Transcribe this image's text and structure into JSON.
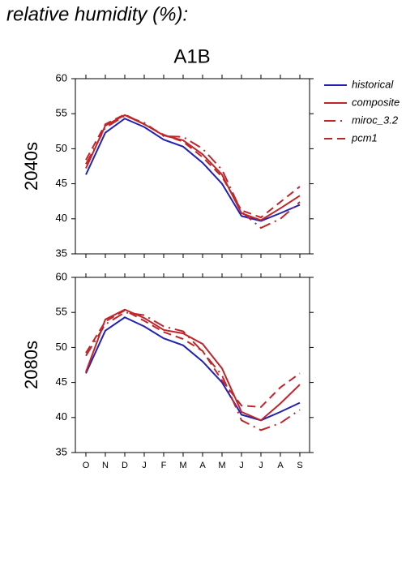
{
  "page_title": "relative humidity (%):",
  "chart_data": [
    {
      "type": "line",
      "title": "A1B",
      "ylabel": "2040s",
      "ylim": [
        35,
        60
      ],
      "yticks": [
        35,
        40,
        45,
        50,
        55,
        60
      ],
      "legend": "right",
      "series": [
        {
          "name": "historical",
          "color": "#2121b4",
          "linestyle": "solid",
          "values": [
            46.3,
            52.3,
            54.3,
            53.1,
            51.3,
            50.3,
            48.0,
            45.0,
            40.4,
            39.7,
            40.8,
            42.0
          ]
        },
        {
          "name": "composite",
          "color": "#c0252a",
          "linestyle": "solid",
          "values": [
            47.2,
            53.3,
            54.8,
            53.5,
            51.9,
            51.2,
            49.2,
            46.3,
            40.8,
            39.8,
            41.5,
            43.3
          ]
        },
        {
          "name": "miroc_3.2",
          "color": "#c0252a",
          "linestyle": "dashdot",
          "values": [
            47.8,
            53.0,
            54.7,
            53.7,
            51.8,
            51.7,
            50.0,
            47.0,
            41.0,
            38.7,
            40.0,
            42.4
          ]
        },
        {
          "name": "pcm1",
          "color": "#c0252a",
          "linestyle": "dash",
          "values": [
            48.4,
            53.5,
            54.9,
            53.5,
            52.0,
            51.0,
            48.8,
            46.0,
            41.2,
            40.2,
            42.4,
            44.6
          ]
        }
      ]
    },
    {
      "type": "line",
      "ylabel": "2080s",
      "categories": [
        "O",
        "N",
        "D",
        "J",
        "F",
        "M",
        "A",
        "M",
        "J",
        "J",
        "A",
        "S"
      ],
      "ylim": [
        35,
        60
      ],
      "yticks": [
        35,
        40,
        45,
        50,
        55,
        60
      ],
      "series": [
        {
          "color": "#2121b4",
          "linestyle": "solid",
          "values": [
            46.3,
            52.4,
            54.3,
            53.0,
            51.3,
            50.3,
            48.0,
            45.0,
            40.4,
            39.6,
            40.8,
            42.1
          ]
        },
        {
          "color": "#c0252a",
          "linestyle": "solid",
          "values": [
            46.5,
            54.0,
            55.4,
            54.2,
            52.5,
            52.0,
            50.5,
            47.0,
            40.8,
            39.6,
            42.0,
            44.7
          ]
        },
        {
          "color": "#c0252a",
          "linestyle": "dashdot",
          "values": [
            48.8,
            53.3,
            55.0,
            54.6,
            53.0,
            52.3,
            49.4,
            46.0,
            39.6,
            38.2,
            39.2,
            41.1
          ]
        },
        {
          "color": "#c0252a",
          "linestyle": "dash",
          "values": [
            49.2,
            53.7,
            55.3,
            53.8,
            52.2,
            51.2,
            49.5,
            45.3,
            41.7,
            41.5,
            44.3,
            46.3
          ]
        }
      ]
    }
  ]
}
